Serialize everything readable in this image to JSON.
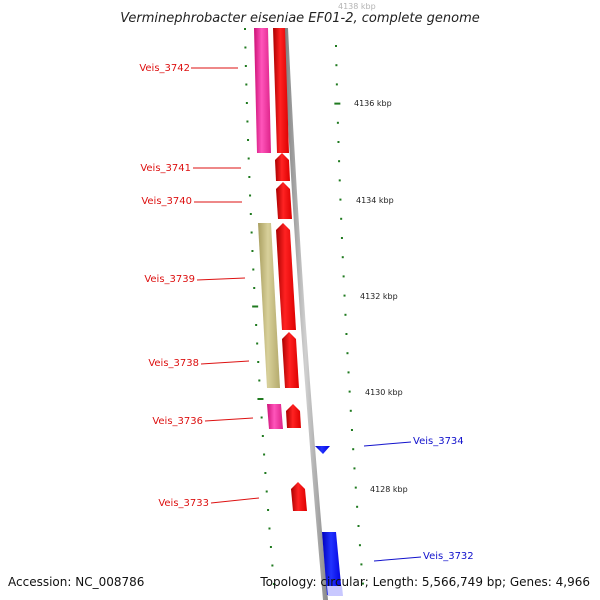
{
  "title": "Verminephrobacter eiseniae EF01-2, complete genome",
  "partial_top_label": "4138 kbp",
  "kbp_labels": [
    "4136 kbp",
    "4134 kbp",
    "4132 kbp",
    "4130 kbp",
    "4128 kbp"
  ],
  "genes_left": [
    "Veis_3742",
    "Veis_3741",
    "Veis_3740",
    "Veis_3739",
    "Veis_3738",
    "Veis_3736",
    "Veis_3733"
  ],
  "genes_right": [
    "Veis_3734",
    "Veis_3732"
  ],
  "footer": {
    "accession": "Accession: NC_008786",
    "topology": "Topology: circular; Length: 5,566,749 bp; Genes: 4,966"
  },
  "colors": {
    "forward_gene": "#ff0000",
    "reverse_gene": "#0000ff",
    "left_label": "#dd1111",
    "right_label": "#1111cc",
    "pink_feature": "#ee3399",
    "olive_feature": "#c8bf80",
    "tick": "#1f7a1f",
    "backbone": "#9a9a9a"
  }
}
